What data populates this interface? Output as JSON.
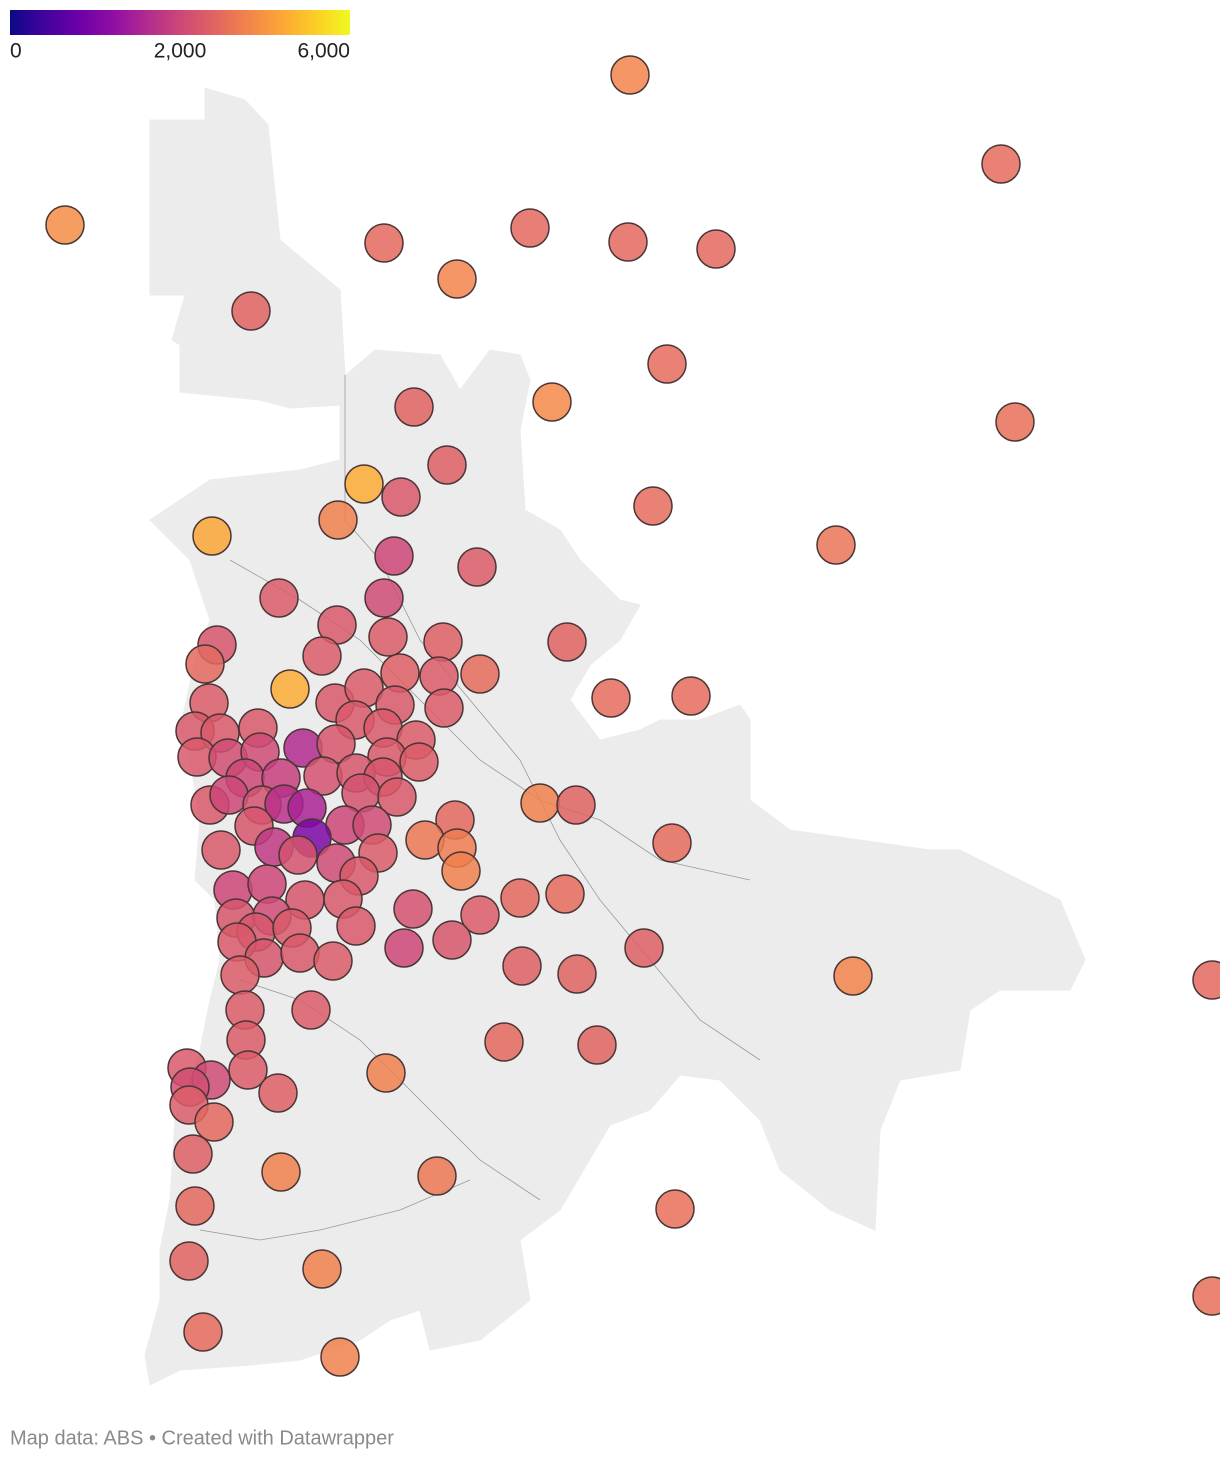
{
  "legend": {
    "ticks": [
      0,
      {
        "value": 2000,
        "label": "2,000"
      },
      {
        "value": 6000,
        "label": "6,000"
      }
    ],
    "colorscale": [
      "#0d0887",
      "#41049d",
      "#6a00a8",
      "#8f0da4",
      "#b12a90",
      "#cc4778",
      "#e16462",
      "#f2844b",
      "#fca636",
      "#fcce25",
      "#f0f921"
    ]
  },
  "map": {
    "values": [
      3600,
      3000,
      3800,
      2900,
      2900,
      2900,
      2900,
      3600,
      2800,
      3000,
      2800,
      3700,
      3100,
      2700,
      4500,
      2500,
      3500,
      3000,
      3200,
      4400,
      2000,
      2600,
      2600,
      2100,
      2500,
      2800,
      2400,
      2900,
      2600,
      2700,
      2600,
      3000,
      2700,
      2600,
      4500,
      3000,
      3000,
      2600,
      2500,
      2600,
      2500,
      2600,
      2500,
      2500,
      2500,
      2500,
      2500,
      2600,
      2500,
      2200,
      2100,
      1600,
      2400,
      2500,
      2600,
      2000,
      1900,
      2300,
      2400,
      2400,
      3500,
      2800,
      2500,
      2000,
      2300,
      1700,
      1500,
      2300,
      2500,
      2900,
      2400,
      2000,
      2100,
      1000,
      3300,
      3400,
      3000,
      2500,
      1800,
      2300,
      2100,
      2600,
      3500,
      2000,
      2000,
      2400,
      2500,
      2900,
      3000,
      2400,
      2100,
      2500,
      2300,
      2600,
      2400,
      2500,
      2500,
      2500,
      2400,
      2000,
      2700,
      2400,
      2500,
      2600,
      2700,
      2800,
      3600,
      2900,
      2600,
      2600,
      2600,
      2600,
      2900,
      2800,
      2500,
      2100,
      2600,
      2200,
      3500,
      2600,
      2700,
      2900,
      2700,
      3500,
      3300,
      2900,
      3100,
      2800,
      3500,
      3100,
      3000,
      3500
    ]
  },
  "footer": "Map data: ABS • Created with Datawrapper"
}
